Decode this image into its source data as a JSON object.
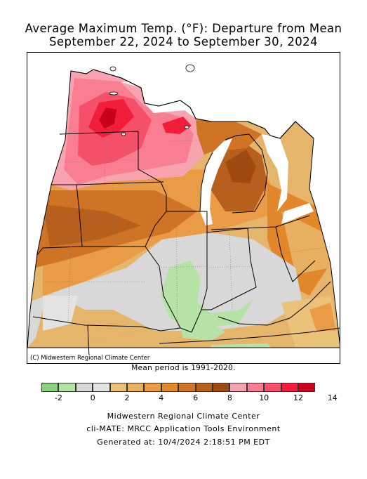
{
  "title_line1": "Average Maximum Temp. (°F): Departure from Mean",
  "title_line2": "September 22, 2024 to September 30, 2024",
  "copyright": "(C) Midwestern Regional Climate Center",
  "mean_period": "Mean period is 1991-2020.",
  "legend": {
    "colors": [
      "#8ccf7e",
      "#b5e3a5",
      "#d8d8d8",
      "#e3e3e3",
      "#ebc27a",
      "#eab061",
      "#e99c45",
      "#e2872a",
      "#cf7424",
      "#b75f1d",
      "#9f4a12",
      "#f8a4b0",
      "#fa7e92",
      "#f5506a",
      "#f21d38",
      "#c8001a"
    ],
    "tick_labels": [
      "-2",
      "0",
      "2",
      "4",
      "6",
      "8",
      "10",
      "12",
      "14"
    ]
  },
  "footer": {
    "line1": "Midwestern Regional Climate Center",
    "line2": "cli-MATE: MRCC Application Tools Environment",
    "line3": "Generated at: 10/4/2024 2:18:51 PM EDT"
  }
}
